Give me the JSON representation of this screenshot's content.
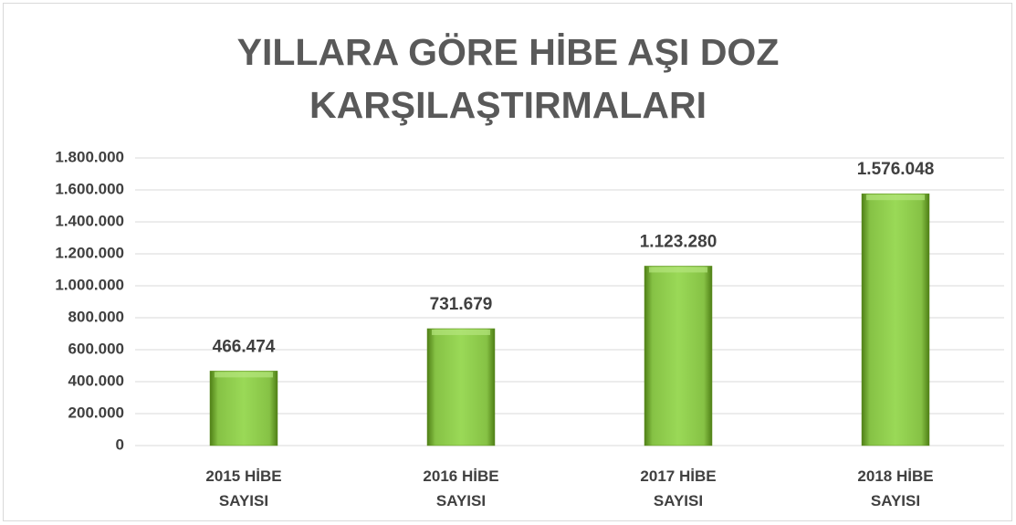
{
  "chart_data": {
    "type": "bar",
    "title": "YILLARA GÖRE  HİBE AŞI DOZ KARŞILAŞTIRMALARI",
    "categories": [
      "2015 HİBE SAYISI",
      "2016 HİBE SAYISI",
      "2017 HİBE SAYISI",
      "2018 HİBE SAYISI"
    ],
    "values": [
      466474,
      731679,
      1123280,
      1576048
    ],
    "value_labels": [
      "466.474",
      "731.679",
      "1.123.280",
      "1.576.048"
    ],
    "color": "#92d050",
    "ylim": [
      0,
      1800000
    ],
    "yticks": [
      0,
      {
        "value": 200000,
        "label": "200.000"
      },
      {
        "value": 400000,
        "label": "400.000"
      },
      {
        "value": 600000,
        "label": "600.000"
      },
      {
        "value": 800000,
        "label": "800.000"
      },
      {
        "value": 1000000,
        "label": "1.000.000"
      },
      {
        "value": 1200000,
        "label": "1.200.000"
      },
      {
        "value": 1400000,
        "label": "1.400.000"
      },
      {
        "value": 1600000,
        "label": "1.600.000"
      },
      {
        "value": 1800000,
        "label": "1.800.000"
      }
    ],
    "grid": true
  }
}
